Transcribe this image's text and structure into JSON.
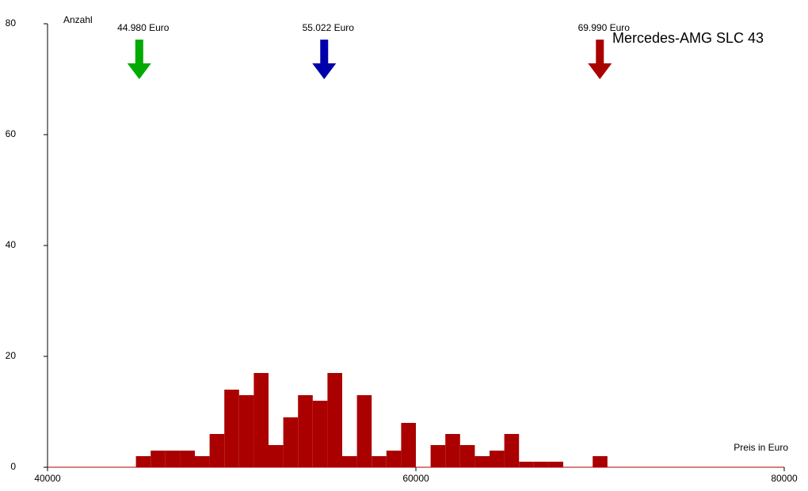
{
  "chart_data": {
    "type": "histogram",
    "title": "Mercedes-AMG SLC 43",
    "y_label": "Anzahl",
    "x_label": "Preis in Euro",
    "bins": [
      44800,
      45600,
      46400,
      47200,
      48000,
      48800,
      49600,
      50400,
      51200,
      52000,
      52800,
      53600,
      54400,
      55200,
      56000,
      56800,
      57600,
      58400,
      59200,
      60000,
      60800,
      61600,
      62400,
      63200,
      64000,
      64800,
      65600,
      66400,
      67200,
      68000,
      68800,
      69600,
      70400
    ],
    "values": [
      2,
      3,
      3,
      3,
      2,
      6,
      14,
      13,
      17,
      4,
      9,
      13,
      12,
      17,
      2,
      13,
      2,
      3,
      8,
      0,
      4,
      6,
      4,
      2,
      3,
      6,
      1,
      1,
      1,
      0,
      0,
      2
    ],
    "color": "#aa0000",
    "xlim": [
      40000,
      80000
    ],
    "ylim": [
      0,
      80
    ],
    "xticks": [
      40000,
      60000,
      80000
    ],
    "yticks": [
      0,
      20,
      40,
      60,
      80
    ],
    "markers": [
      {
        "value": 44980,
        "label": "44.980 Euro",
        "color": "#00aa00"
      },
      {
        "value": 55022,
        "label": "55.022 Euro",
        "color": "#0000aa"
      },
      {
        "value": 69990,
        "label": "69.990 Euro",
        "color": "#aa0000"
      }
    ]
  }
}
